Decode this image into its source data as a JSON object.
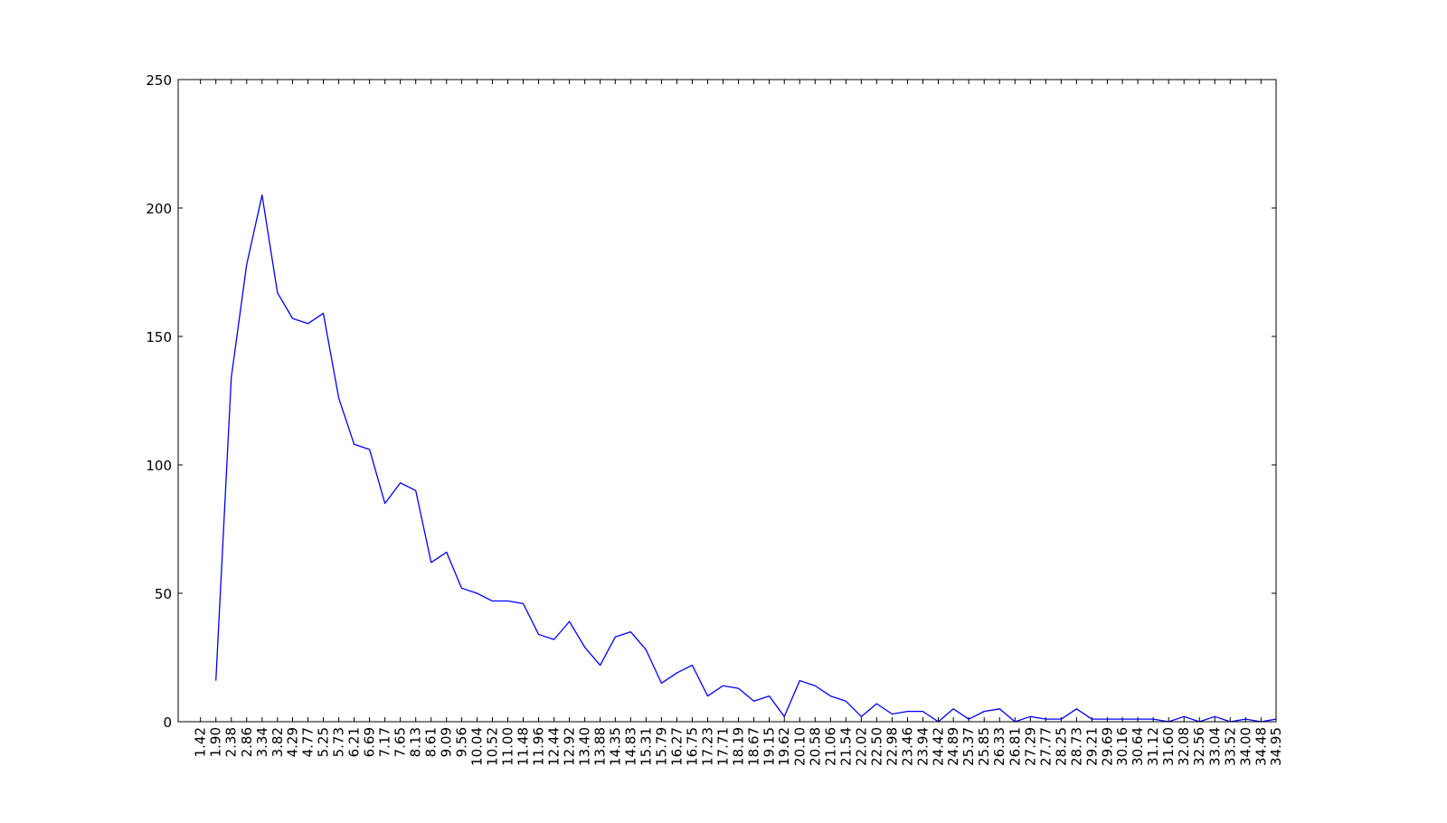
{
  "chart_data": {
    "type": "line",
    "title": "",
    "xlabel": "",
    "ylabel": "",
    "color": "#0000ff",
    "grid": false,
    "legend": "none",
    "ylim": [
      0,
      250
    ],
    "yticks": [
      "0",
      "50",
      "100",
      "150",
      "200",
      "250"
    ],
    "x_tick_labels": [
      "1.42",
      "1.90",
      "2.38",
      "2.86",
      "3.34",
      "3.82",
      "4.29",
      "4.77",
      "5.25",
      "5.73",
      "6.21",
      "6.69",
      "7.17",
      "7.65",
      "8.13",
      "8.61",
      "9.09",
      "9.56",
      "10.04",
      "10.52",
      "11.00",
      "11.48",
      "11.96",
      "12.44",
      "12.92",
      "13.40",
      "13.88",
      "14.35",
      "14.83",
      "15.31",
      "15.79",
      "16.27",
      "16.75",
      "17.23",
      "17.71",
      "18.19",
      "18.67",
      "19.15",
      "19.62",
      "20.10",
      "20.58",
      "21.06",
      "21.54",
      "22.02",
      "22.50",
      "22.98",
      "23.46",
      "23.94",
      "24.42",
      "24.89",
      "25.37",
      "25.85",
      "26.33",
      "26.81",
      "27.29",
      "27.77",
      "28.25",
      "28.73",
      "29.21",
      "29.69",
      "30.16",
      "30.64",
      "31.12",
      "31.60",
      "32.08",
      "32.56",
      "33.04",
      "33.52",
      "34.00",
      "34.48",
      "34.95"
    ],
    "series": [
      {
        "x": [
          "1.90",
          "2.38",
          "2.86",
          "3.34",
          "3.82",
          "4.29",
          "4.77",
          "5.25",
          "5.73",
          "6.21",
          "6.69",
          "7.17",
          "7.65",
          "8.13",
          "8.61",
          "9.09",
          "9.56",
          "10.04",
          "10.52",
          "11.00",
          "11.48",
          "11.96",
          "12.44",
          "12.92",
          "13.40",
          "13.88",
          "14.35",
          "14.83",
          "15.31",
          "15.79",
          "16.27",
          "16.75",
          "17.23",
          "17.71",
          "18.19",
          "18.67",
          "19.15",
          "19.62",
          "20.10",
          "20.58",
          "21.06",
          "21.54",
          "22.02",
          "22.50",
          "22.98",
          "23.46",
          "23.94",
          "24.42",
          "24.89",
          "25.37",
          "25.85",
          "26.33",
          "26.81",
          "27.29",
          "27.77",
          "28.25",
          "28.73",
          "29.21",
          "29.69",
          "30.16",
          "30.64",
          "31.12",
          "31.60",
          "32.08",
          "32.56",
          "33.04",
          "33.52",
          "34.00",
          "34.48",
          "34.95"
        ],
        "values": [
          16,
          134,
          178,
          205,
          167,
          157,
          155,
          159,
          126,
          108,
          106,
          85,
          93,
          90,
          62,
          66,
          52,
          50,
          47,
          47,
          46,
          34,
          32,
          39,
          29,
          22,
          33,
          35,
          28,
          15,
          19,
          22,
          10,
          14,
          13,
          8,
          10,
          2,
          16,
          14,
          10,
          8,
          2,
          7,
          3,
          4,
          4,
          0,
          5,
          1,
          4,
          5,
          0,
          2,
          1,
          1,
          5,
          1,
          1,
          1,
          1,
          1,
          0,
          2,
          0,
          2,
          0,
          1,
          0,
          1
        ]
      }
    ]
  }
}
